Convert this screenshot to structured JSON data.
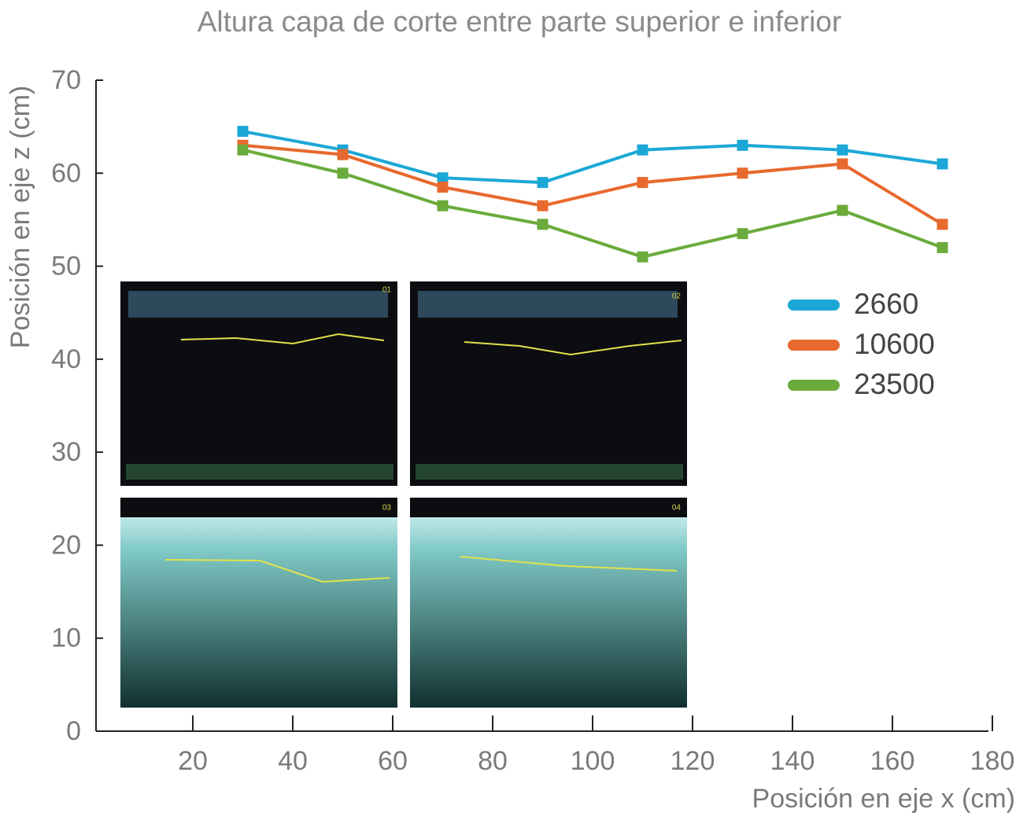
{
  "chart_data": {
    "type": "line",
    "title": "Altura capa de corte entre parte superior e inferior",
    "x_label": "Posición en eje x (cm)",
    "y_label": "Posición en eje z (cm)",
    "x": [
      30,
      50,
      70,
      90,
      110,
      130,
      150,
      170
    ],
    "series": [
      {
        "name": "2660",
        "color": "#1ba8d6",
        "values": [
          64.5,
          62.5,
          59.5,
          59,
          62.5,
          63,
          62.5,
          61
        ]
      },
      {
        "name": "10600",
        "color": "#e8692e",
        "values": [
          63,
          62,
          58.5,
          56.5,
          59,
          60,
          61,
          54.5
        ]
      },
      {
        "name": "23500",
        "color": "#6aab3b",
        "values": [
          62.5,
          60,
          56.5,
          54.5,
          51,
          53.5,
          56,
          52
        ]
      }
    ],
    "xlim": [
      0,
      180
    ],
    "xticks": [
      20,
      40,
      60,
      80,
      100,
      120,
      140,
      160,
      180
    ],
    "ylim": [
      0,
      70
    ],
    "yticks": [
      0,
      10,
      20,
      30,
      40,
      50,
      60,
      70
    ],
    "legend": "right",
    "inset_labels": [
      "01",
      "02",
      "03",
      "04"
    ]
  }
}
